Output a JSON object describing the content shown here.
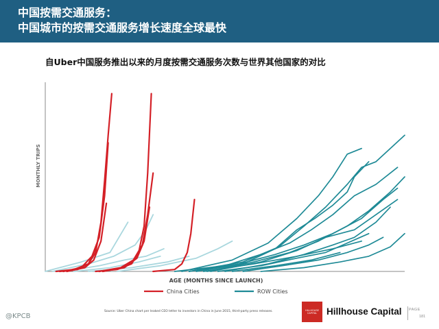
{
  "header": {
    "title_line1": "中国按需交通服务：",
    "title_line2": "中国城市的按需交通服务增长速度全球最快"
  },
  "chart_data": {
    "type": "line",
    "title": "自Uber中国服务推出以来的月度按需交通服务次数与世界其他国家的对比",
    "xlabel": "AGE (MONTHS SINCE LAUNCH)",
    "ylabel": "MONTHLY TRIPS",
    "xlim": [
      0,
      100
    ],
    "ylim": [
      0,
      100
    ],
    "grid": false,
    "legend_position": "bottom-center",
    "colors": {
      "China Cities": "#d42027",
      "ROW Cities": "#1e8a96",
      "ROW Light": "#a9d7de"
    },
    "legend": [
      {
        "label": "China Cities",
        "color": "#d42027"
      },
      {
        "label": "ROW Cities",
        "color": "#1e8a96"
      }
    ],
    "series": [
      {
        "group": "China Cities",
        "x": [
          3,
          8,
          12,
          14,
          15.5,
          16.5,
          17.5,
          18.5
        ],
        "y": [
          0,
          1,
          4,
          10,
          26,
          48,
          72,
          94
        ]
      },
      {
        "group": "China Cities",
        "x": [
          5,
          10,
          13,
          15,
          16.5,
          17.5
        ],
        "y": [
          0,
          2,
          8,
          18,
          40,
          68
        ]
      },
      {
        "group": "China Cities",
        "x": [
          6,
          11,
          13.5,
          15.5,
          17
        ],
        "y": [
          0,
          2,
          6,
          16,
          36
        ]
      },
      {
        "group": "China Cities",
        "x": [
          4,
          9,
          12,
          14
        ],
        "y": [
          0,
          1,
          4,
          12
        ]
      },
      {
        "group": "China Cities",
        "x": [
          14,
          20,
          24,
          26,
          27.5,
          28.5,
          29.5
        ],
        "y": [
          0,
          1,
          4,
          10,
          24,
          52,
          94
        ]
      },
      {
        "group": "China Cities",
        "x": [
          15,
          21,
          24.5,
          27,
          28.5,
          30
        ],
        "y": [
          0,
          2,
          6,
          14,
          30,
          52
        ]
      },
      {
        "group": "China Cities",
        "x": [
          16,
          22,
          25.5,
          27.5,
          29
        ],
        "y": [
          0,
          2,
          7,
          16,
          34
        ]
      },
      {
        "group": "China Cities",
        "x": [
          30,
          36,
          38,
          39.5,
          40.5,
          41.5
        ],
        "y": [
          0,
          1,
          4,
          10,
          20,
          38
        ]
      },
      {
        "group": "ROW Light",
        "x": [
          0,
          10,
          18,
          23
        ],
        "y": [
          0,
          5,
          10,
          26
        ]
      },
      {
        "group": "ROW Light",
        "x": [
          2,
          12,
          19,
          25,
          28,
          30
        ],
        "y": [
          0,
          4,
          8,
          14,
          22,
          30
        ]
      },
      {
        "group": "ROW Light",
        "x": [
          5,
          15,
          22,
          28,
          33
        ],
        "y": [
          0,
          3,
          6,
          8,
          12
        ]
      },
      {
        "group": "ROW Light",
        "x": [
          8,
          18,
          26,
          32
        ],
        "y": [
          0,
          2,
          5,
          8
        ]
      },
      {
        "group": "ROW Light",
        "x": [
          20,
          32,
          42,
          48,
          52
        ],
        "y": [
          0,
          3,
          7,
          12,
          16
        ]
      },
      {
        "group": "ROW Light",
        "x": [
          12,
          24,
          34,
          40
        ],
        "y": [
          0,
          2,
          5,
          8
        ]
      },
      {
        "group": "ROW Cities",
        "x": [
          40,
          55,
          65,
          72,
          78,
          84,
          88,
          92,
          96,
          100
        ],
        "y": [
          0,
          5,
          13,
          24,
          34,
          46,
          55,
          58,
          65,
          72
        ]
      },
      {
        "group": "ROW Cities",
        "x": [
          38,
          52,
          62,
          70,
          76,
          80,
          84,
          88
        ],
        "y": [
          0,
          6,
          15,
          28,
          40,
          50,
          62,
          65
        ]
      },
      {
        "group": "ROW Cities",
        "x": [
          42,
          55,
          64,
          70,
          75,
          80,
          84,
          86,
          90
        ],
        "y": [
          0,
          4,
          12,
          22,
          28,
          35,
          42,
          50,
          58
        ]
      },
      {
        "group": "ROW Cities",
        "x": [
          36,
          50,
          60,
          68,
          74,
          80,
          86,
          92,
          98
        ],
        "y": [
          0,
          3,
          9,
          15,
          22,
          30,
          40,
          46,
          55
        ]
      },
      {
        "group": "ROW Cities",
        "x": [
          45,
          58,
          68,
          76,
          84,
          90,
          96,
          100
        ],
        "y": [
          0,
          5,
          10,
          16,
          24,
          32,
          42,
          50
        ]
      },
      {
        "group": "ROW Cities",
        "x": [
          40,
          54,
          64,
          72,
          80,
          88,
          94,
          98
        ],
        "y": [
          0,
          4,
          9,
          14,
          20,
          28,
          38,
          44
        ]
      },
      {
        "group": "ROW Cities",
        "x": [
          46,
          60,
          70,
          78,
          86,
          92,
          98
        ],
        "y": [
          0,
          5,
          11,
          18,
          22,
          30,
          38
        ]
      },
      {
        "group": "ROW Cities",
        "x": [
          50,
          62,
          72,
          80,
          86,
          92,
          96
        ],
        "y": [
          0,
          4,
          9,
          14,
          18,
          26,
          34
        ]
      },
      {
        "group": "ROW Cities",
        "x": [
          48,
          60,
          70,
          78,
          84,
          90
        ],
        "y": [
          0,
          3,
          7,
          10,
          15,
          20
        ]
      },
      {
        "group": "ROW Cities",
        "x": [
          55,
          66,
          76,
          84,
          90,
          94
        ],
        "y": [
          0,
          3,
          6,
          10,
          14,
          18
        ]
      },
      {
        "group": "ROW Cities",
        "x": [
          60,
          72,
          82,
          90,
          96,
          100
        ],
        "y": [
          0,
          2,
          5,
          8,
          13,
          20
        ]
      },
      {
        "group": "ROW Cities",
        "x": [
          44,
          58,
          70,
          80,
          88
        ],
        "y": [
          0,
          4,
          8,
          12,
          16
        ]
      },
      {
        "group": "ROW Cities",
        "x": [
          52,
          64,
          74,
          82
        ],
        "y": [
          0,
          3,
          6,
          10
        ]
      }
    ]
  },
  "footer": {
    "source": "Source: Uber China chart per leaked CEO letter to investors in China in June 2015, third-party press releases.",
    "watermark": "@KPCB",
    "logo_text": "HILLHOUSE CAPITAL",
    "brand": "Hillhouse Capital",
    "page_label": "PAGE",
    "page_number": "181"
  }
}
